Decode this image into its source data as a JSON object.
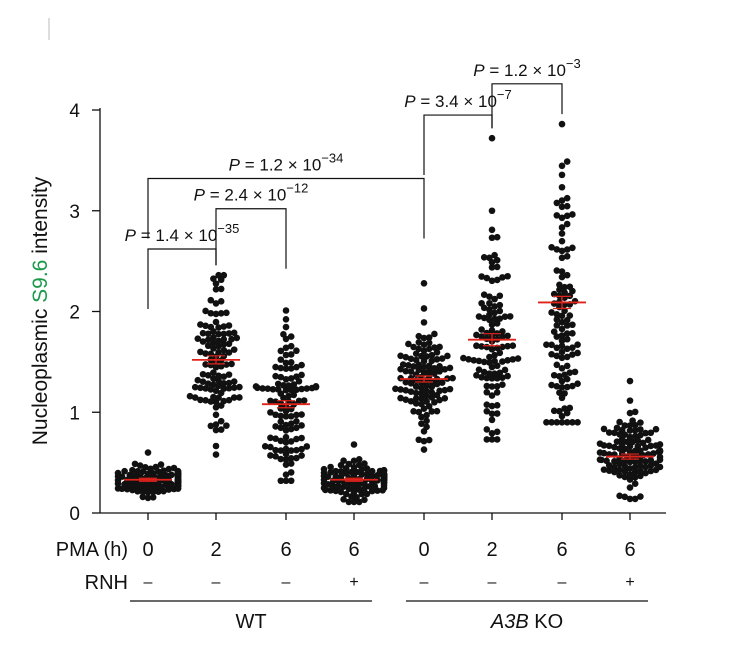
{
  "chart_data": {
    "type": "scatter",
    "ylabel": {
      "prefix": "Nucleoplasmic ",
      "highlight": "S9.6",
      "suffix": " intensity",
      "highlight_color": "#1a9a4a"
    },
    "ylim": [
      0,
      4
    ],
    "yticks": [
      0,
      1,
      2,
      3,
      4
    ],
    "grid": false,
    "row_labels": {
      "pma": "PMA (h)",
      "rnh": "RNH"
    },
    "categories": [
      {
        "pma": "0",
        "rnh": "–",
        "genotype": "WT"
      },
      {
        "pma": "2",
        "rnh": "–",
        "genotype": "WT"
      },
      {
        "pma": "6",
        "rnh": "–",
        "genotype": "WT"
      },
      {
        "pma": "6",
        "rnh": "+",
        "genotype": "WT"
      },
      {
        "pma": "0",
        "rnh": "–",
        "genotype": "A3B KO"
      },
      {
        "pma": "2",
        "rnh": "–",
        "genotype": "A3B KO"
      },
      {
        "pma": "6",
        "rnh": "–",
        "genotype": "A3B KO"
      },
      {
        "pma": "6",
        "rnh": "+",
        "genotype": "A3B KO"
      }
    ],
    "groups": [
      {
        "label": "WT",
        "italic": "",
        "rest": "WT",
        "from": 0,
        "to": 3
      },
      {
        "label": "A3B KO",
        "italic": "A3B",
        "rest": " KO",
        "from": 4,
        "to": 7
      }
    ],
    "series": [
      {
        "mean": 0.33,
        "sem": 0.015,
        "min": 0.15,
        "max": 0.6,
        "n": 110,
        "spread": 0.08
      },
      {
        "mean": 1.52,
        "sem": 0.04,
        "min": 0.58,
        "max": 2.36,
        "n": 110,
        "spread": 0.35
      },
      {
        "mean": 1.08,
        "sem": 0.035,
        "min": 0.32,
        "max": 2.01,
        "n": 110,
        "spread": 0.34
      },
      {
        "mean": 0.33,
        "sem": 0.015,
        "min": 0.11,
        "max": 0.68,
        "n": 110,
        "spread": 0.1
      },
      {
        "mean": 1.33,
        "sem": 0.03,
        "min": 0.63,
        "max": 2.28,
        "n": 110,
        "spread": 0.27
      },
      {
        "mean": 1.72,
        "sem": 0.06,
        "min": 0.73,
        "max": 3.72,
        "n": 110,
        "spread": 0.52
      },
      {
        "mean": 2.09,
        "sem": 0.06,
        "min": 0.9,
        "max": 3.86,
        "n": 110,
        "spread": 0.62
      },
      {
        "mean": 0.56,
        "sem": 0.025,
        "min": 0.14,
        "max": 1.31,
        "n": 110,
        "spread": 0.2
      }
    ],
    "mean_color": "#e0231b",
    "point_color": "#111111",
    "comparisons": [
      {
        "from": 0,
        "to": 1,
        "y": 2.62,
        "mantissa": "1.4",
        "exponent": "−35"
      },
      {
        "from": 1,
        "to": 2,
        "y": 3.02,
        "mantissa": "2.4",
        "exponent": "−12"
      },
      {
        "from": 0,
        "to": 4,
        "y": 3.32,
        "mantissa": "1.2",
        "exponent": "−34"
      },
      {
        "from": 4,
        "to": 5,
        "y": 3.95,
        "mantissa": "3.4",
        "exponent": "−7"
      },
      {
        "from": 5,
        "to": 6,
        "y": 4.26,
        "mantissa": "1.2",
        "exponent": "−3"
      }
    ]
  }
}
